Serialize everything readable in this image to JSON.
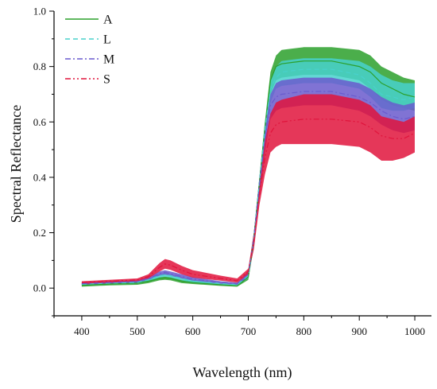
{
  "chart_data": {
    "type": "area",
    "xlabel": "Wavelength (nm)",
    "ylabel": "Spectral Reflectance",
    "xlim": [
      350,
      1030
    ],
    "ylim": [
      -0.1,
      1.0
    ],
    "x_ticks": [
      "400",
      "500",
      "600",
      "700",
      "800",
      "900",
      "1000"
    ],
    "y_ticks": [
      "0.0",
      "0.2",
      "0.4",
      "0.6",
      "0.8",
      "1.0"
    ],
    "grid": false,
    "legend_position": "top-left",
    "x": [
      400,
      450,
      500,
      520,
      540,
      550,
      560,
      580,
      600,
      650,
      680,
      700,
      710,
      720,
      730,
      740,
      750,
      760,
      780,
      800,
      850,
      900,
      920,
      940,
      960,
      980,
      1000
    ],
    "series": [
      {
        "name": "A",
        "color": "#2ca02c",
        "line_style": "solid",
        "upper": [
          0.015,
          0.02,
          0.022,
          0.03,
          0.04,
          0.042,
          0.04,
          0.03,
          0.025,
          0.015,
          0.01,
          0.05,
          0.2,
          0.4,
          0.6,
          0.78,
          0.84,
          0.86,
          0.865,
          0.87,
          0.87,
          0.86,
          0.84,
          0.8,
          0.78,
          0.76,
          0.75
        ],
        "mean": [
          0.01,
          0.015,
          0.018,
          0.025,
          0.035,
          0.037,
          0.035,
          0.025,
          0.02,
          0.012,
          0.008,
          0.04,
          0.18,
          0.38,
          0.58,
          0.75,
          0.8,
          0.81,
          0.815,
          0.82,
          0.82,
          0.8,
          0.78,
          0.74,
          0.72,
          0.7,
          0.69
        ],
        "lower": [
          0.005,
          0.01,
          0.012,
          0.018,
          0.028,
          0.03,
          0.028,
          0.018,
          0.015,
          0.008,
          0.005,
          0.03,
          0.15,
          0.34,
          0.52,
          0.7,
          0.75,
          0.76,
          0.765,
          0.77,
          0.77,
          0.75,
          0.72,
          0.68,
          0.66,
          0.65,
          0.64
        ]
      },
      {
        "name": "L",
        "color": "#48d1cc",
        "line_style": "dashed",
        "upper": [
          0.018,
          0.022,
          0.025,
          0.035,
          0.05,
          0.055,
          0.05,
          0.04,
          0.03,
          0.02,
          0.015,
          0.055,
          0.2,
          0.4,
          0.6,
          0.75,
          0.8,
          0.82,
          0.825,
          0.83,
          0.83,
          0.82,
          0.8,
          0.77,
          0.75,
          0.74,
          0.74
        ],
        "mean": [
          0.014,
          0.018,
          0.02,
          0.03,
          0.045,
          0.048,
          0.045,
          0.035,
          0.025,
          0.017,
          0.012,
          0.045,
          0.18,
          0.38,
          0.57,
          0.72,
          0.76,
          0.78,
          0.785,
          0.79,
          0.79,
          0.77,
          0.74,
          0.7,
          0.69,
          0.68,
          0.69
        ],
        "lower": [
          0.01,
          0.014,
          0.016,
          0.025,
          0.038,
          0.041,
          0.038,
          0.028,
          0.02,
          0.013,
          0.009,
          0.035,
          0.15,
          0.34,
          0.52,
          0.67,
          0.72,
          0.73,
          0.735,
          0.74,
          0.74,
          0.72,
          0.69,
          0.65,
          0.64,
          0.64,
          0.65
        ]
      },
      {
        "name": "M",
        "color": "#6a5acd",
        "line_style": "dash-dot",
        "upper": [
          0.02,
          0.025,
          0.028,
          0.04,
          0.06,
          0.065,
          0.06,
          0.05,
          0.04,
          0.025,
          0.02,
          0.06,
          0.2,
          0.4,
          0.58,
          0.7,
          0.74,
          0.75,
          0.755,
          0.76,
          0.76,
          0.74,
          0.72,
          0.69,
          0.67,
          0.66,
          0.67
        ],
        "mean": [
          0.016,
          0.02,
          0.024,
          0.035,
          0.052,
          0.057,
          0.052,
          0.042,
          0.033,
          0.02,
          0.016,
          0.05,
          0.18,
          0.37,
          0.54,
          0.66,
          0.69,
          0.7,
          0.705,
          0.71,
          0.71,
          0.69,
          0.67,
          0.64,
          0.62,
          0.61,
          0.62
        ],
        "lower": [
          0.012,
          0.016,
          0.02,
          0.03,
          0.045,
          0.049,
          0.045,
          0.035,
          0.027,
          0.016,
          0.012,
          0.04,
          0.15,
          0.33,
          0.49,
          0.61,
          0.64,
          0.65,
          0.655,
          0.66,
          0.66,
          0.64,
          0.62,
          0.59,
          0.57,
          0.56,
          0.57
        ]
      },
      {
        "name": "S",
        "color": "#e0143c",
        "line_style": "dash-dot-dot",
        "upper": [
          0.025,
          0.03,
          0.035,
          0.05,
          0.09,
          0.105,
          0.1,
          0.08,
          0.065,
          0.045,
          0.035,
          0.07,
          0.2,
          0.38,
          0.53,
          0.63,
          0.67,
          0.68,
          0.69,
          0.7,
          0.7,
          0.68,
          0.66,
          0.62,
          0.61,
          0.6,
          0.62
        ],
        "mean": [
          0.02,
          0.025,
          0.03,
          0.042,
          0.075,
          0.087,
          0.083,
          0.065,
          0.05,
          0.035,
          0.027,
          0.06,
          0.17,
          0.34,
          0.47,
          0.56,
          0.59,
          0.6,
          0.605,
          0.61,
          0.61,
          0.6,
          0.58,
          0.55,
          0.54,
          0.54,
          0.56
        ],
        "lower": [
          0.015,
          0.02,
          0.025,
          0.035,
          0.06,
          0.07,
          0.066,
          0.05,
          0.038,
          0.027,
          0.02,
          0.05,
          0.14,
          0.3,
          0.41,
          0.49,
          0.51,
          0.52,
          0.52,
          0.52,
          0.52,
          0.51,
          0.49,
          0.46,
          0.46,
          0.47,
          0.49
        ]
      }
    ]
  }
}
